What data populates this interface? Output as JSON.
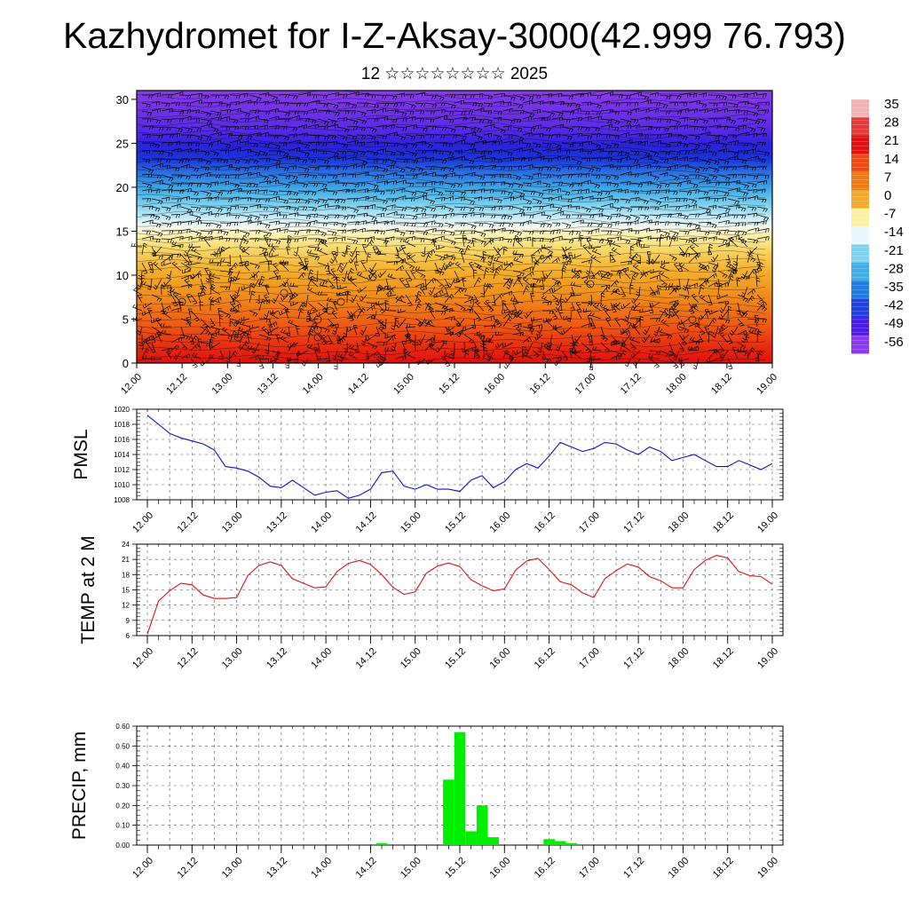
{
  "header": {
    "title": "Kazhydromet for I-Z-Aksay-3000(42.999 76.793)",
    "subtitle": "12 ☆☆☆☆☆☆☆☆ 2025"
  },
  "colors": {
    "pmsl_line": "#1010cc",
    "temp_line": "#dd1111",
    "precip_bar": "#00ee00",
    "wind_barb": "#000000"
  },
  "chart_data": [
    {
      "type": "heatmap",
      "name": "cross-section",
      "x_ticks": [
        "12.00",
        "12.12",
        "13.00",
        "13.12",
        "14.00",
        "14.12",
        "15.00",
        "15.12",
        "16.00",
        "16.12",
        "17.00",
        "17.12",
        "18.00",
        "18.12",
        "19.00"
      ],
      "y_ticks": [
        "0",
        "5",
        "10",
        "15",
        "20",
        "25",
        "30"
      ],
      "ylim": [
        0,
        31
      ],
      "overlay": "wind-barbs",
      "colorbar": {
        "labels": [
          "35",
          "28",
          "21",
          "14",
          "7",
          "0",
          "-7",
          "-14",
          "-21",
          "-28",
          "-35",
          "-42",
          "-49",
          "-56"
        ],
        "colors": [
          "#f2b3b3",
          "#e43a3a",
          "#e10f0f",
          "#ee4a13",
          "#f07a16",
          "#f3a92a",
          "#fcf0a0",
          "#eaf7fb",
          "#7fd2ee",
          "#3faee8",
          "#1f7ce0",
          "#1f3fe0",
          "#4a1ae8",
          "#8a3ae8"
        ]
      }
    },
    {
      "type": "line",
      "name": "pmsl",
      "ylabel": "PMSL",
      "ylim": [
        1008,
        1020
      ],
      "y_ticks": [
        "1008",
        "1010",
        "1012",
        "1014",
        "1016",
        "1018",
        "1020"
      ],
      "x_ticks": [
        "12.00",
        "12.12",
        "13.00",
        "13.12",
        "14.00",
        "14.12",
        "15.00",
        "15.12",
        "16.00",
        "16.12",
        "17.00",
        "17.12",
        "18.00",
        "18.12",
        "19.00"
      ],
      "x": [
        0,
        1,
        2,
        3,
        4,
        5,
        6,
        7,
        8,
        9,
        10,
        11,
        12,
        13,
        14,
        15,
        16,
        17,
        18,
        19,
        20,
        21,
        22,
        23,
        24,
        25,
        26,
        27,
        28,
        29,
        30,
        31,
        32,
        33,
        34,
        35,
        36,
        37,
        38,
        39,
        40,
        41,
        42,
        43,
        44,
        45,
        46,
        47,
        48,
        49,
        50,
        51,
        52,
        53,
        54,
        55,
        56
      ],
      "values": [
        1019.2,
        1018.0,
        1016.8,
        1016.2,
        1015.8,
        1015.4,
        1014.6,
        1012.4,
        1012.2,
        1011.8,
        1011.0,
        1009.8,
        1009.6,
        1010.6,
        1009.6,
        1008.6,
        1009.0,
        1009.2,
        1008.2,
        1008.6,
        1009.4,
        1011.6,
        1011.8,
        1009.8,
        1009.4,
        1010.0,
        1009.4,
        1009.4,
        1009.1,
        1010.6,
        1011.2,
        1009.6,
        1010.4,
        1012.0,
        1012.8,
        1012.2,
        1013.8,
        1015.6,
        1015.0,
        1014.4,
        1014.8,
        1015.6,
        1015.4,
        1014.6,
        1014.0,
        1015.0,
        1014.4,
        1013.2,
        1013.6,
        1014.0,
        1013.2,
        1012.4,
        1012.4,
        1013.2,
        1012.6,
        1012.0,
        1012.8
      ]
    },
    {
      "type": "line",
      "name": "temp-2m",
      "ylabel": "TEMP at 2 M",
      "ylim": [
        6,
        24
      ],
      "y_ticks": [
        "6",
        "9",
        "12",
        "15",
        "18",
        "21",
        "24"
      ],
      "x_ticks": [
        "12.00",
        "12.12",
        "13.00",
        "13.12",
        "14.00",
        "14.12",
        "15.00",
        "15.12",
        "16.00",
        "16.12",
        "17.00",
        "17.12",
        "18.00",
        "18.12",
        "19.00"
      ],
      "x": [
        0,
        1,
        2,
        3,
        4,
        5,
        6,
        7,
        8,
        9,
        10,
        11,
        12,
        13,
        14,
        15,
        16,
        17,
        18,
        19,
        20,
        21,
        22,
        23,
        24,
        25,
        26,
        27,
        28,
        29,
        30,
        31,
        32,
        33,
        34,
        35,
        36,
        37,
        38,
        39,
        40,
        41,
        42,
        43,
        44,
        45,
        46,
        47,
        48,
        49,
        50,
        51,
        52,
        53,
        54,
        55,
        56
      ],
      "values": [
        6.3,
        12.8,
        14.8,
        16.3,
        16.0,
        14.0,
        13.3,
        13.3,
        13.5,
        17.8,
        19.8,
        20.5,
        19.8,
        17.2,
        16.3,
        15.4,
        15.6,
        18.6,
        20.2,
        20.8,
        20.0,
        18.0,
        15.5,
        14.1,
        14.6,
        18.3,
        19.7,
        20.3,
        19.6,
        17.0,
        15.8,
        14.8,
        15.2,
        18.9,
        20.7,
        21.2,
        19.0,
        16.6,
        16.0,
        14.4,
        13.5,
        17.2,
        18.8,
        20.1,
        19.5,
        17.6,
        16.8,
        15.4,
        15.4,
        19.0,
        20.8,
        21.8,
        21.3,
        18.6,
        17.8,
        17.6,
        16.1
      ]
    },
    {
      "type": "bar",
      "name": "precip",
      "ylabel": "PRECIP, mm",
      "ylim": [
        0,
        0.6
      ],
      "y_ticks": [
        "0.00",
        "0.10",
        "0.20",
        "0.30",
        "0.40",
        "0.50",
        "0.60"
      ],
      "x_ticks": [
        "12.00",
        "12.12",
        "13.00",
        "13.12",
        "14.00",
        "14.12",
        "15.00",
        "15.12",
        "16.00",
        "16.12",
        "17.00",
        "17.12",
        "18.00",
        "18.12",
        "19.00"
      ],
      "x": [
        21,
        27,
        28,
        29,
        30,
        31,
        36,
        37,
        38
      ],
      "values": [
        0.01,
        0.33,
        0.57,
        0.07,
        0.2,
        0.04,
        0.03,
        0.02,
        0.01
      ]
    }
  ]
}
